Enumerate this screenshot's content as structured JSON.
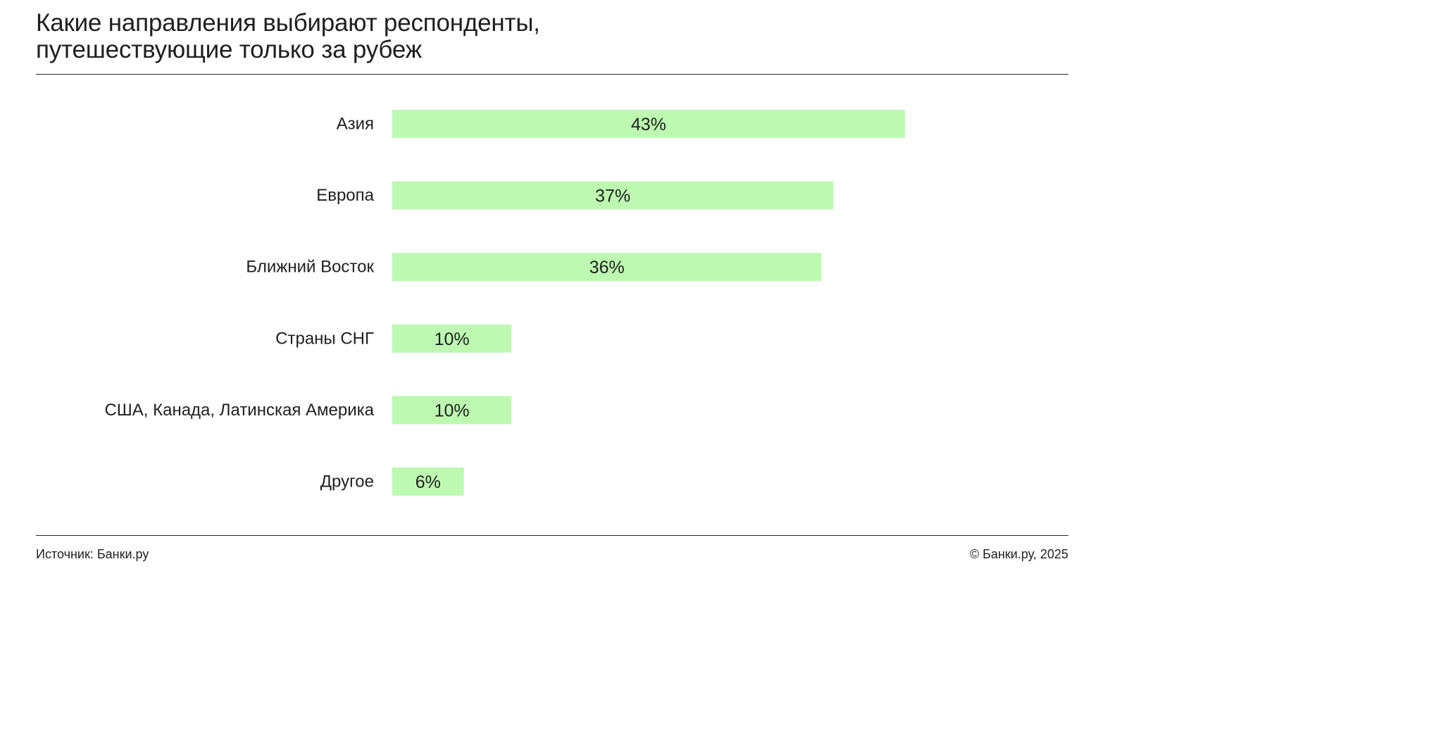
{
  "title_line1": "Какие направления выбирают респонденты,",
  "title_line2": "путешествующие только за рубеж",
  "footer": {
    "source": "Источник: Банки.ру",
    "copyright": "© Банки.ру, 2025"
  },
  "colors": {
    "bar": "#bdf9b1",
    "text": "#1f1f1f"
  },
  "chart_data": {
    "type": "bar",
    "orientation": "horizontal",
    "categories": [
      "Азия",
      "Европа",
      "Ближний Восток",
      "Страны СНГ",
      "США, Канада, Латинская Америка",
      "Другое"
    ],
    "values": [
      43,
      37,
      36,
      10,
      10,
      6
    ],
    "value_labels": [
      "43%",
      "37%",
      "36%",
      "10%",
      "10%",
      "6%"
    ],
    "unit": "%",
    "xlim": [
      0,
      100
    ],
    "grid": false,
    "legend": "none"
  }
}
